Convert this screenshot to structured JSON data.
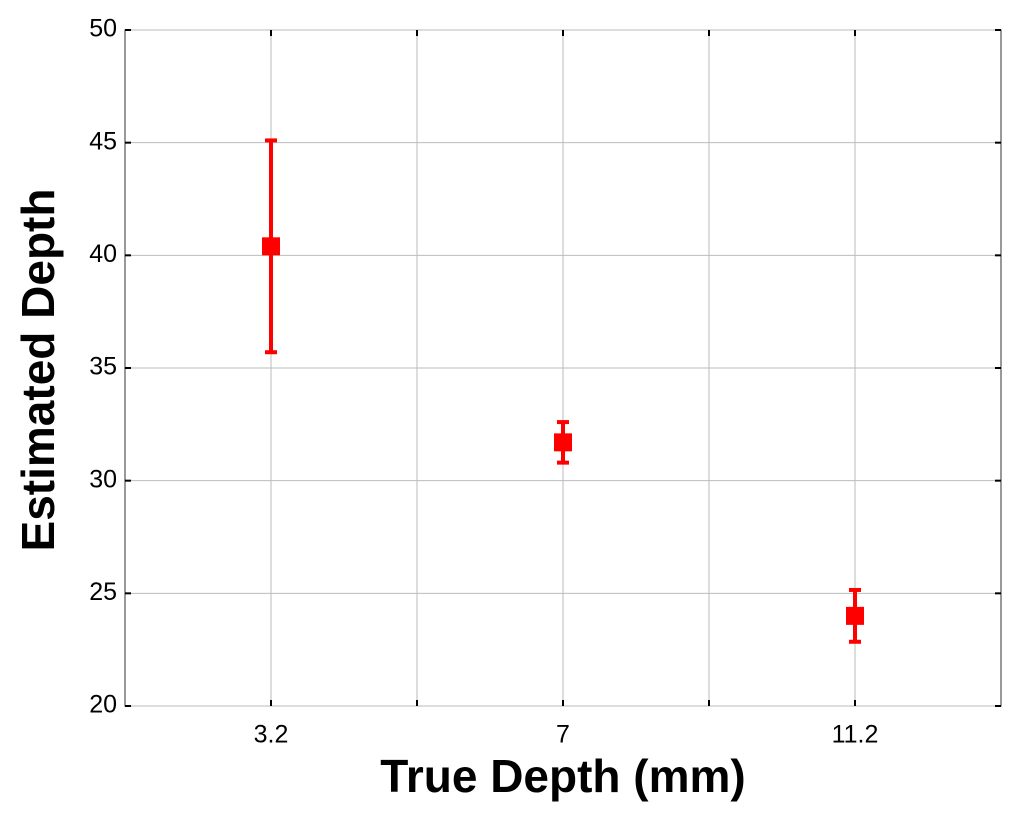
{
  "chart_data": {
    "type": "errorbar",
    "xlabel": "True Depth (mm)",
    "ylabel": "Estimated Depth",
    "categories": [
      "3.2",
      null,
      "7",
      null,
      "11.2"
    ],
    "series": [
      {
        "color": "#ff0000",
        "values": [
          40.4,
          null,
          31.7,
          null,
          24.0
        ],
        "errors": [
          4.7,
          null,
          0.9,
          null,
          1.15
        ]
      }
    ],
    "ylim": [
      20,
      50
    ],
    "yticks": [
      20,
      25,
      30,
      35,
      40,
      45,
      50
    ],
    "grid": true
  }
}
